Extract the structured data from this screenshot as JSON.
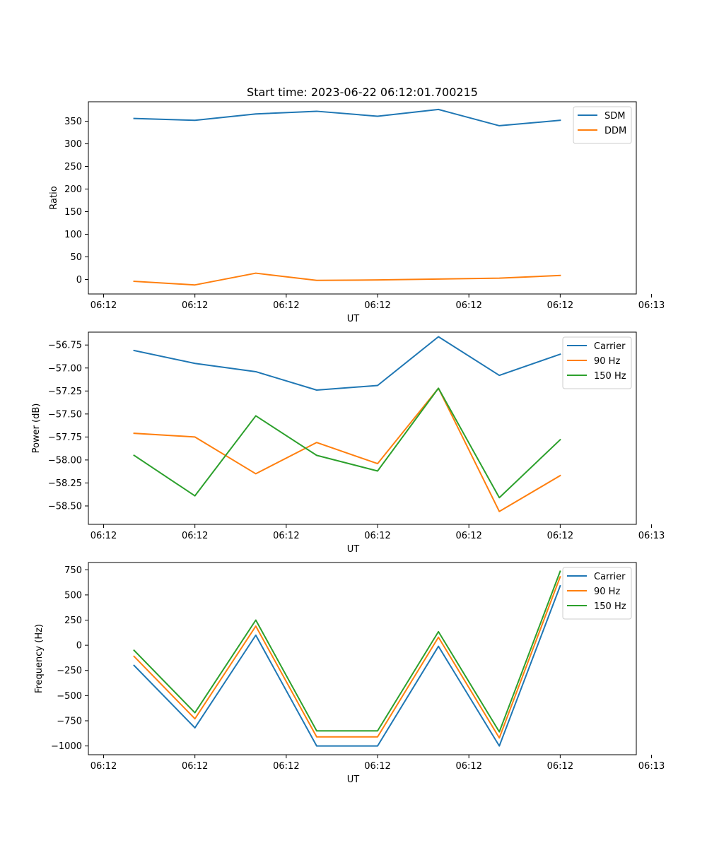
{
  "chart_data": [
    {
      "type": "line",
      "title": "Start time: 2023-06-22 06:12:01.700215",
      "xlabel": "UT",
      "ylabel": "Ratio",
      "x": [
        2.5,
        3.5,
        4.5,
        5.5,
        6.5,
        7.5,
        8.5,
        9.5
      ],
      "xlim": [
        1.75,
        10.75
      ],
      "xticks": [
        2,
        3.5,
        5,
        6.5,
        8,
        9.5,
        11
      ],
      "xticklabels": [
        "06:12",
        "06:12",
        "06:12",
        "06:12",
        "06:12",
        "06:12",
        "06:13"
      ],
      "ylim": [
        -32,
        393
      ],
      "yticks": [
        0,
        50,
        100,
        150,
        200,
        250,
        300,
        350
      ],
      "yticklabels": [
        "0",
        "50",
        "100",
        "150",
        "200",
        "250",
        "300",
        "350"
      ],
      "legend": "top-right",
      "series": [
        {
          "name": "SDM",
          "color": "#1f77b4",
          "values": [
            356,
            352,
            366,
            372,
            361,
            376,
            340,
            352
          ]
        },
        {
          "name": "DDM",
          "color": "#ff7f0e",
          "values": [
            -4,
            -12,
            14,
            -2,
            -1,
            1,
            3,
            9
          ]
        }
      ]
    },
    {
      "type": "line",
      "xlabel": "UT",
      "ylabel": "Power (dB)",
      "x": [
        2.5,
        3.5,
        4.5,
        5.5,
        6.5,
        7.5,
        8.5,
        9.5
      ],
      "xlim": [
        1.75,
        10.75
      ],
      "xticks": [
        2,
        3.5,
        5,
        6.5,
        8,
        9.5,
        11
      ],
      "xticklabels": [
        "06:12",
        "06:12",
        "06:12",
        "06:12",
        "06:12",
        "06:12",
        "06:13"
      ],
      "ylim": [
        -58.7,
        -56.61
      ],
      "yticks": [
        -58.5,
        -58.25,
        -58.0,
        -57.75,
        -57.5,
        -57.25,
        -57.0,
        -56.75
      ],
      "yticklabels": [
        "−58.50",
        "−58.25",
        "−58.00",
        "−57.75",
        "−57.50",
        "−57.25",
        "−57.00",
        "−56.75"
      ],
      "legend": "top-right",
      "series": [
        {
          "name": "Carrier",
          "color": "#1f77b4",
          "values": [
            -56.81,
            -56.95,
            -57.04,
            -57.24,
            -57.19,
            -56.66,
            -57.08,
            -56.85
          ]
        },
        {
          "name": "90 Hz",
          "color": "#ff7f0e",
          "values": [
            -57.71,
            -57.75,
            -58.15,
            -57.81,
            -58.04,
            -57.22,
            -58.56,
            -58.17
          ]
        },
        {
          "name": "150 Hz",
          "color": "#2ca02c",
          "values": [
            -57.95,
            -58.39,
            -57.52,
            -57.95,
            -58.12,
            -57.22,
            -58.41,
            -57.78
          ]
        }
      ]
    },
    {
      "type": "line",
      "xlabel": "UT",
      "ylabel": "Frequency (Hz)",
      "x": [
        2.5,
        3.5,
        4.5,
        5.5,
        6.5,
        7.5,
        8.5,
        9.5
      ],
      "xlim": [
        1.75,
        10.75
      ],
      "xticks": [
        2,
        3.5,
        5,
        6.5,
        8,
        9.5,
        11
      ],
      "xticklabels": [
        "06:12",
        "06:12",
        "06:12",
        "06:12",
        "06:12",
        "06:12",
        "06:13"
      ],
      "ylim": [
        -1087,
        822
      ],
      "yticks": [
        -1000,
        -750,
        -500,
        -250,
        0,
        250,
        500,
        750
      ],
      "yticklabels": [
        "−1000",
        "−750",
        "−500",
        "−250",
        "0",
        "250",
        "500",
        "750"
      ],
      "legend": "top-right",
      "series": [
        {
          "name": "Carrier",
          "color": "#1f77b4",
          "values": [
            -200,
            -820,
            100,
            -1000,
            -1000,
            -10,
            -1000,
            590
          ]
        },
        {
          "name": "90 Hz",
          "color": "#ff7f0e",
          "values": [
            -110,
            -730,
            190,
            -910,
            -910,
            80,
            -920,
            680
          ]
        },
        {
          "name": "150 Hz",
          "color": "#2ca02c",
          "values": [
            -50,
            -670,
            250,
            -850,
            -850,
            135,
            -860,
            735
          ]
        }
      ]
    }
  ]
}
